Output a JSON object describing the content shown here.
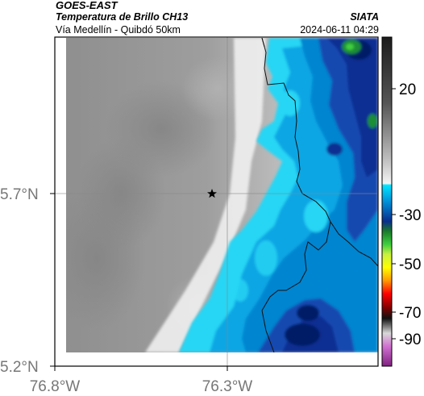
{
  "header": {
    "title": "GOES-EAST",
    "subtitle": "Temperatura de Brillo CH13",
    "region": "Vía Medellín - Quibdó 50km",
    "org": "SIATA",
    "datetime": "2024-06-11 04:29"
  },
  "axes": {
    "lat_ticks": [
      "5.7°N",
      "5.2°N"
    ],
    "lon_ticks": [
      "76.8°W",
      "76.3°W"
    ]
  },
  "colorbar": {
    "ticks": [
      "20",
      "-30",
      "-50",
      "-70",
      "-90"
    ],
    "colors": {
      "warm_top": "#1c1c1c",
      "cold_blue": "#0a2e8e",
      "cyan": "#00e5ff",
      "green": "#1f8e34",
      "yellow": "#ffff00",
      "red": "#ff0000",
      "magenta": "#b040b0"
    }
  },
  "map": {
    "marker": "star",
    "colors": {
      "warm_land": "#9a9a9a",
      "clear_sky": "#efefef",
      "cloud_light": "#27d6f4",
      "cloud_mid": "#0085d0",
      "cloud_deep": "#0a2f92",
      "cloud_core": "#061a66"
    }
  }
}
